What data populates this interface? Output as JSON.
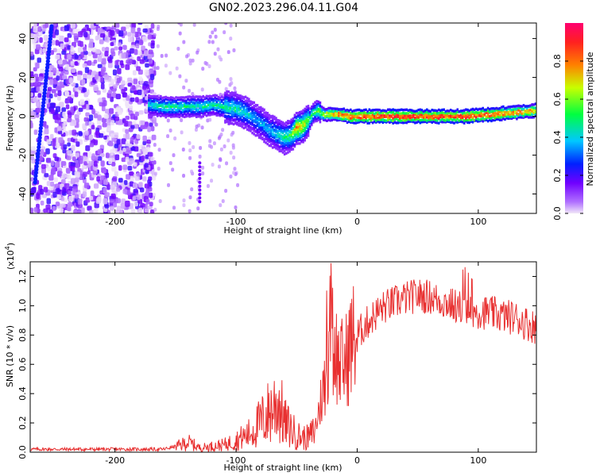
{
  "title": "GN02.2023.296.04.11.G04",
  "chart_data": [
    {
      "type": "heatmap",
      "xlabel": "Height of straight line (km)",
      "ylabel": "Frequency (Hz)",
      "xlim": [
        -270,
        148
      ],
      "ylim": [
        -50,
        48
      ],
      "xticks": [
        -200,
        -100,
        0,
        100
      ],
      "yticks": [
        -40,
        -20,
        0,
        20,
        40
      ],
      "grid": false,
      "ridge": {
        "description_free": true,
        "x": [
          -172,
          -160,
          -150,
          -140,
          -130,
          -120,
          -110,
          -100,
          -92,
          -85,
          -78,
          -72,
          -66,
          -60,
          -55,
          -50,
          -45,
          -40,
          -36,
          -32,
          -28,
          -22,
          -15,
          -5,
          10,
          30,
          60,
          90,
          110,
          130,
          148
        ],
        "y": [
          6,
          5,
          5,
          5,
          5,
          6,
          5,
          4,
          2,
          -1,
          -4,
          -7,
          -9,
          -11,
          -10,
          -6,
          -5,
          -2,
          2,
          3,
          1,
          1,
          1,
          0,
          0,
          0,
          0,
          0,
          1,
          2,
          3
        ],
        "amplitude": [
          0.45,
          0.5,
          0.5,
          0.5,
          0.5,
          0.5,
          0.5,
          0.5,
          0.45,
          0.4,
          0.4,
          0.4,
          0.45,
          0.5,
          0.55,
          0.8,
          0.75,
          0.6,
          0.5,
          0.6,
          0.7,
          0.8,
          0.9,
          0.95,
          1.0,
          1.0,
          1.0,
          1.0,
          0.95,
          0.9,
          0.85
        ]
      },
      "colorbar": {
        "label": "Normalized spectral amplitude",
        "ticks": [
          0.0,
          0.2,
          0.4,
          0.6,
          0.8
        ],
        "range": [
          0,
          1
        ],
        "colors": [
          "#e8d0f0",
          "#7000ff",
          "#0030ff",
          "#00d8ff",
          "#00ff20",
          "#ffff00",
          "#ff5000",
          "#ff0060"
        ]
      }
    },
    {
      "type": "line",
      "xlabel": "Height of straight line (km)",
      "ylabel": "SNR (10 * v/v)",
      "scale_label": "(x10",
      "scale_exp": "4",
      "scale_close": ")",
      "xlim": [
        -270,
        148
      ],
      "ylim": [
        0,
        1.3
      ],
      "xticks": [
        -200,
        -100,
        0,
        100
      ],
      "yticks": [
        0.0,
        0.2,
        0.4,
        0.6,
        0.8,
        1.0,
        1.2
      ],
      "color": "#e83030",
      "grid": false,
      "envelope": {
        "x": [
          -270,
          -160,
          -145,
          -140,
          -130,
          -110,
          -100,
          -90,
          -80,
          -70,
          -65,
          -60,
          -50,
          -45,
          -40,
          -35,
          -30,
          -25,
          -22,
          -20,
          -18,
          -15,
          -10,
          -5,
          0,
          10,
          20,
          30,
          40,
          50,
          60,
          70,
          80,
          90,
          100,
          110,
          120,
          130,
          140,
          148
        ],
        "y": [
          0.02,
          0.02,
          0.05,
          0.07,
          0.03,
          0.05,
          0.08,
          0.12,
          0.2,
          0.3,
          0.35,
          0.2,
          0.12,
          0.1,
          0.1,
          0.15,
          0.35,
          0.6,
          0.9,
          0.85,
          0.7,
          0.6,
          0.6,
          0.75,
          0.8,
          0.9,
          0.98,
          1.02,
          1.05,
          1.07,
          1.06,
          1.03,
          1.0,
          0.98,
          0.96,
          0.95,
          0.93,
          0.92,
          0.88,
          0.85
        ]
      }
    }
  ]
}
